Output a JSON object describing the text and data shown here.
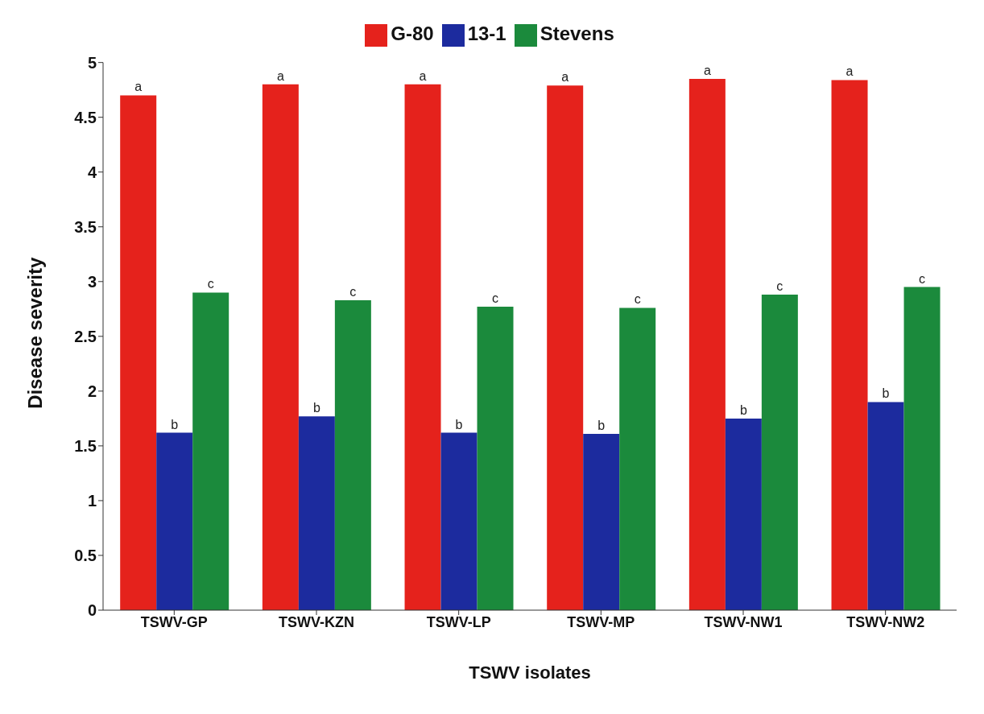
{
  "chart_data": {
    "type": "bar",
    "xlabel": "TSWV isolates",
    "ylabel": "Disease severity",
    "categories": [
      "TSWV-GP",
      "TSWV-KZN",
      "TSWV-LP",
      "TSWV-MP",
      "TSWV-NW1",
      "TSWV-NW2"
    ],
    "series": [
      {
        "name": "G-80",
        "color": "#e5221c",
        "values": [
          4.7,
          4.8,
          4.8,
          4.79,
          4.85,
          4.84
        ],
        "value_labels": [
          "a",
          "a",
          "a",
          "a",
          "a",
          "a"
        ]
      },
      {
        "name": "13-1",
        "color": "#1c2b9e",
        "values": [
          1.62,
          1.77,
          1.62,
          1.61,
          1.75,
          1.9
        ],
        "value_labels": [
          "b",
          "b",
          "b",
          "b",
          "b",
          "b"
        ]
      },
      {
        "name": "Stevens",
        "color": "#1b8a3c",
        "values": [
          2.9,
          2.83,
          2.77,
          2.76,
          2.88,
          2.95
        ],
        "value_labels": [
          "c",
          "c",
          "c",
          "c",
          "c",
          "c"
        ]
      }
    ],
    "ylim": [
      0,
      5
    ],
    "yticks": [
      0,
      0.5,
      1,
      1.5,
      2,
      2.5,
      3,
      3.5,
      4,
      4.5,
      5
    ],
    "grid": false,
    "legend": "top"
  }
}
